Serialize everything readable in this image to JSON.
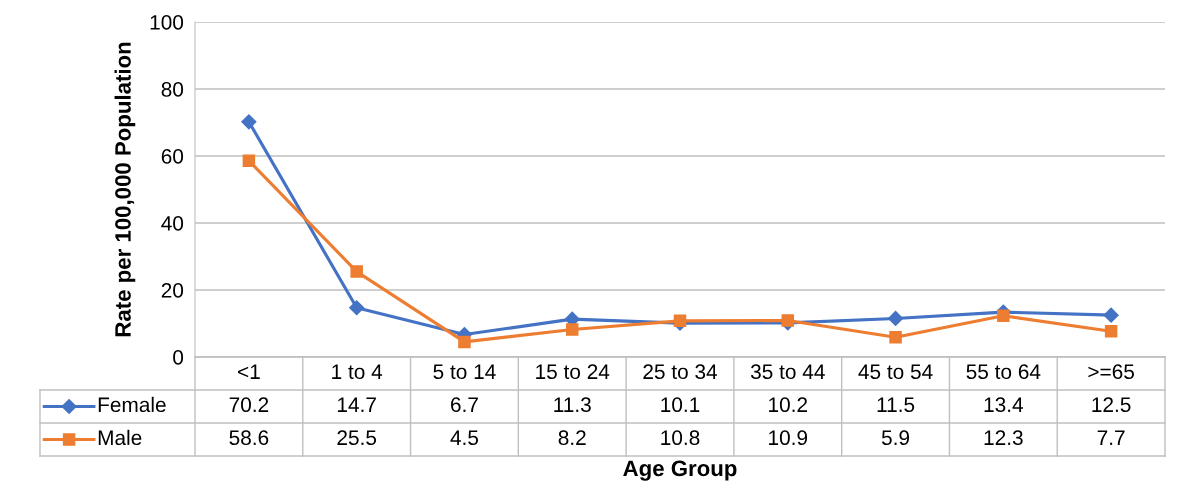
{
  "chart_data": {
    "type": "line",
    "ylabel": "Rate per 100,000 Population",
    "xlabel": "Age Group",
    "categories": [
      "<1",
      "1 to 4",
      "5 to 14",
      "15 to 24",
      "25 to 34",
      "35 to 44",
      "45 to 54",
      "55 to 64",
      ">=65"
    ],
    "series": [
      {
        "name": "Female",
        "color": "#4472c4",
        "marker": "diamond",
        "values": [
          70.2,
          14.7,
          6.7,
          11.3,
          10.1,
          10.2,
          11.5,
          13.4,
          12.5
        ]
      },
      {
        "name": "Male",
        "color": "#ed7d31",
        "marker": "square",
        "values": [
          58.6,
          25.5,
          4.5,
          8.2,
          10.8,
          10.9,
          5.9,
          12.3,
          7.7
        ]
      }
    ],
    "ylim": [
      0,
      100
    ],
    "yticks": [
      0,
      20,
      40,
      60,
      80,
      100
    ],
    "grid": "y",
    "legend": "bottom",
    "data_labels": true,
    "line_style": "solid"
  }
}
